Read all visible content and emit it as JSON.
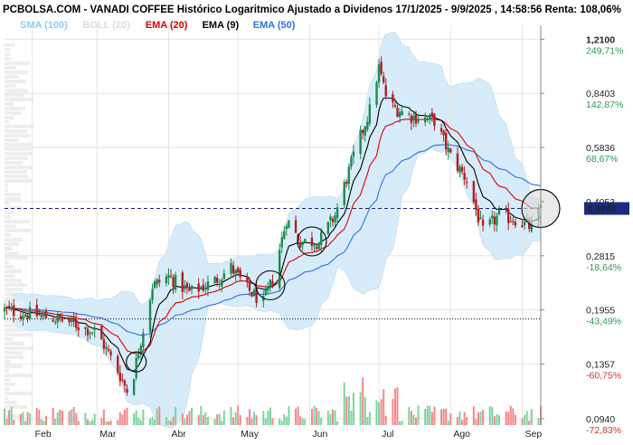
{
  "chart_data": {
    "type": "candlestick",
    "title": "PCBOLSA.COM - VANADI COFFEE Histórico Logaritmico Ajustado a Dividenos 17/1/2025 - 9/9/2025 , 14:58:56 Renta: 108,06%",
    "scale": "log",
    "ylim": [
      0.09,
      1.25
    ],
    "legend": [
      {
        "label": "SMA (100)",
        "color": "#87cefa"
      },
      {
        "label": "BOLL (20)",
        "color": "#dddddd"
      },
      {
        "label": "EMA (20)",
        "color": "#dd0000"
      },
      {
        "label": "EMA (9)",
        "color": "#000000"
      },
      {
        "label": "EMA (50)",
        "color": "#3070e0"
      }
    ],
    "price_levels": [
      {
        "price": 1.21,
        "price_label": "1,2100",
        "pct": "249,71%"
      },
      {
        "price": 0.8403,
        "price_label": "0,8403",
        "pct": "142,87%"
      },
      {
        "price": 0.5836,
        "price_label": "0,5836",
        "pct": "68,67%"
      },
      {
        "price": 0.4053,
        "price_label": "0,4053",
        "pct": ""
      },
      {
        "price": 0.2815,
        "price_label": "0,2815",
        "pct": "-18,64%"
      },
      {
        "price": 0.1955,
        "price_label": "0,1955",
        "pct": "-43,49%"
      },
      {
        "price": 0.1357,
        "price_label": "0,1357",
        "pct": "-60,75%"
      },
      {
        "price": 0.094,
        "price_label": "0,0940",
        "pct": "-72,83%"
      }
    ],
    "current_price": {
      "value": 0.387,
      "label": "0,3870"
    },
    "reference_price": 0.1839,
    "months": [
      "Feb",
      "Mar",
      "Abr",
      "May",
      "Jun",
      "Jul",
      "Ago",
      "Sep"
    ],
    "month_dates": [
      "2025-02-01",
      "2025-03-01",
      "2025-04-01",
      "2025-05-01",
      "2025-06-01",
      "2025-07-01",
      "2025-08-01",
      "2025-09-01"
    ],
    "date_range": [
      "2025-01-20",
      "2025-09-09"
    ],
    "circled_dates": [
      "2025-03-18",
      "2025-05-15",
      "2025-06-02",
      "2025-09-09"
    ],
    "price_path": [
      [
        "2025-01-20",
        0.195
      ],
      [
        "2025-02-01",
        0.19
      ],
      [
        "2025-02-15",
        0.182
      ],
      [
        "2025-03-01",
        0.168
      ],
      [
        "2025-03-10",
        0.13
      ],
      [
        "2025-03-15",
        0.11
      ],
      [
        "2025-03-20",
        0.16
      ],
      [
        "2025-03-25",
        0.23
      ],
      [
        "2025-04-01",
        0.245
      ],
      [
        "2025-04-10",
        0.22
      ],
      [
        "2025-04-20",
        0.235
      ],
      [
        "2025-04-28",
        0.26
      ],
      [
        "2025-05-05",
        0.225
      ],
      [
        "2025-05-12",
        0.205
      ],
      [
        "2025-05-16",
        0.24
      ],
      [
        "2025-05-22",
        0.36
      ],
      [
        "2025-05-28",
        0.31
      ],
      [
        "2025-06-05",
        0.31
      ],
      [
        "2025-06-12",
        0.37
      ],
      [
        "2025-06-20",
        0.55
      ],
      [
        "2025-06-27",
        0.75
      ],
      [
        "2025-07-01",
        1.0
      ],
      [
        "2025-07-05",
        0.78
      ],
      [
        "2025-07-15",
        0.72
      ],
      [
        "2025-07-25",
        0.7
      ],
      [
        "2025-08-01",
        0.55
      ],
      [
        "2025-08-08",
        0.47
      ],
      [
        "2025-08-15",
        0.33
      ],
      [
        "2025-08-22",
        0.37
      ],
      [
        "2025-08-29",
        0.36
      ],
      [
        "2025-09-05",
        0.34
      ],
      [
        "2025-09-09",
        0.387
      ]
    ]
  }
}
